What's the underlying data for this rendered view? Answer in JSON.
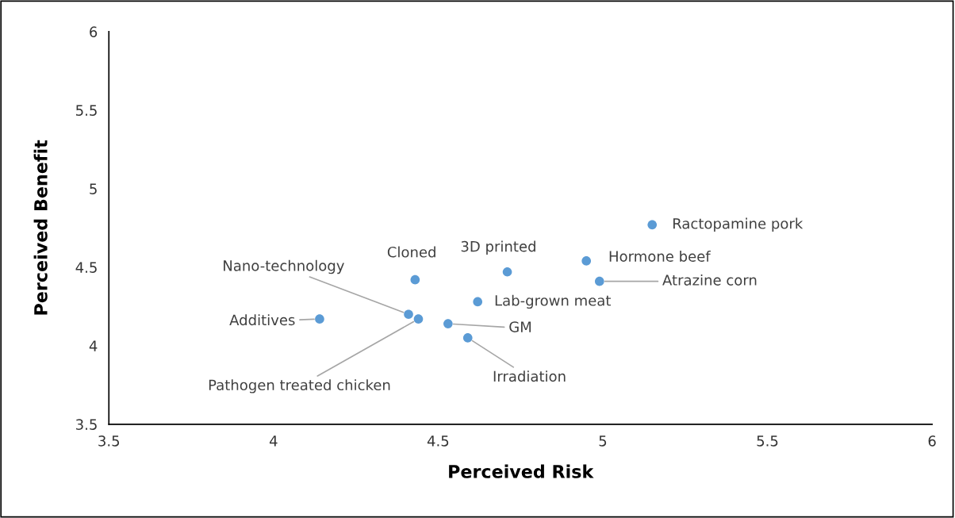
{
  "chart_data": {
    "type": "scatter",
    "xlabel": "Perceived Risk",
    "ylabel": "Perceived Benefit",
    "x": [
      5.15,
      4.95,
      4.99,
      4.71,
      4.43,
      4.62,
      4.41,
      4.44,
      4.14,
      4.53,
      4.59
    ],
    "values": [
      4.77,
      4.54,
      4.41,
      4.47,
      4.42,
      4.28,
      4.2,
      4.17,
      4.17,
      4.14,
      4.05
    ],
    "color": "#5b9bd5",
    "marker": "circle",
    "grid": false,
    "xlim": [
      3.5,
      6
    ],
    "xticks": [
      3.5,
      4,
      4.5,
      5,
      5.5,
      6
    ],
    "ylim": [
      3.5,
      6
    ],
    "yticks": [
      3.5,
      4,
      4.5,
      5,
      5.5,
      6
    ],
    "annotations": [
      {
        "text": "Ractopamine pork",
        "x": 5.15,
        "y": 4.77
      },
      {
        "text": "Hormone beef",
        "x": 4.95,
        "y": 4.54
      },
      {
        "text": "Atrazine corn",
        "x": 4.99,
        "y": 4.41
      },
      {
        "text": "3D printed",
        "x": 4.71,
        "y": 4.47
      },
      {
        "text": "Cloned",
        "x": 4.43,
        "y": 4.42
      },
      {
        "text": "Lab-grown meat",
        "x": 4.62,
        "y": 4.28
      },
      {
        "text": "Nano-technology",
        "x": 4.41,
        "y": 4.2
      },
      {
        "text": "Pathogen treated chicken",
        "x": 4.44,
        "y": 4.17
      },
      {
        "text": "Additives",
        "x": 4.14,
        "y": 4.17
      },
      {
        "text": "GM",
        "x": 4.53,
        "y": 4.14
      },
      {
        "text": "Irradiation",
        "x": 4.59,
        "y": 4.05
      }
    ]
  }
}
